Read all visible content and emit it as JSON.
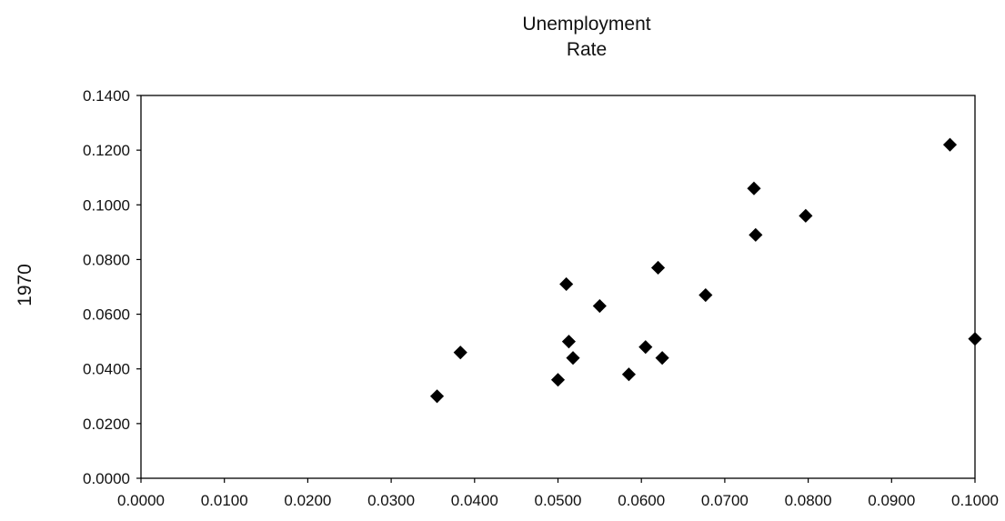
{
  "chart_data": {
    "type": "scatter",
    "title_lines": [
      "Unemployment",
      "Rate"
    ],
    "xlabel": "",
    "ylabel": "1970",
    "xlim": [
      0.0,
      0.1
    ],
    "ylim": [
      0.0,
      0.14
    ],
    "x_ticks": [
      0.0,
      0.01,
      0.02,
      0.03,
      0.04,
      0.05,
      0.06,
      0.07,
      0.08,
      0.09,
      0.1
    ],
    "x_tick_labels": [
      "0.0000",
      "0.0100",
      "0.0200",
      "0.0300",
      "0.0400",
      "0.0500",
      "0.0600",
      "0.0700",
      "0.0800",
      "0.0900",
      "0.1000"
    ],
    "y_ticks": [
      0.0,
      0.02,
      0.04,
      0.06,
      0.08,
      0.1,
      0.12,
      0.14
    ],
    "y_tick_labels": [
      "0.0000",
      "0.0200",
      "0.0400",
      "0.0600",
      "0.0800",
      "0.1000",
      "0.1200",
      "0.1400"
    ],
    "grid": false,
    "legend": "none",
    "marker": "diamond",
    "marker_color": "#000000",
    "points": [
      {
        "x": 0.0355,
        "y": 0.03
      },
      {
        "x": 0.0383,
        "y": 0.046
      },
      {
        "x": 0.05,
        "y": 0.036
      },
      {
        "x": 0.051,
        "y": 0.071
      },
      {
        "x": 0.0513,
        "y": 0.05
      },
      {
        "x": 0.0518,
        "y": 0.044
      },
      {
        "x": 0.055,
        "y": 0.063
      },
      {
        "x": 0.0585,
        "y": 0.038
      },
      {
        "x": 0.0605,
        "y": 0.048
      },
      {
        "x": 0.062,
        "y": 0.077
      },
      {
        "x": 0.0625,
        "y": 0.044
      },
      {
        "x": 0.0677,
        "y": 0.067
      },
      {
        "x": 0.0735,
        "y": 0.106
      },
      {
        "x": 0.0737,
        "y": 0.089
      },
      {
        "x": 0.0797,
        "y": 0.096
      },
      {
        "x": 0.097,
        "y": 0.122
      },
      {
        "x": 0.1,
        "y": 0.051
      }
    ]
  }
}
